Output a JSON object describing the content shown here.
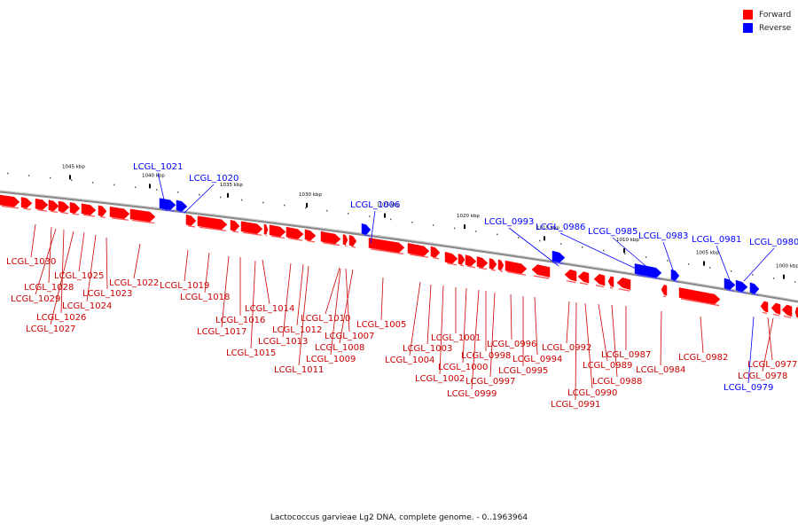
{
  "legend": {
    "items": [
      {
        "label": "Forward",
        "color": "#ff0000"
      },
      {
        "label": "Reverse",
        "color": "#0000ff"
      }
    ]
  },
  "caption": "Lactococcus garvieae Lg2 DNA, complete genome. - 0..1963964",
  "ruler_labels": [
    "1045 kbp",
    "1040 kbp",
    "1035 kbp",
    "1030 kbp",
    "1025 kbp",
    "1020 kbp",
    "1015 kbp",
    "1010 kbp",
    "1005 kbp",
    "1000 kbp"
  ],
  "genes_top": [
    {
      "label": "LCGL_1021",
      "strand": "reverse"
    },
    {
      "label": "LCGL_1020",
      "strand": "reverse"
    },
    {
      "label": "LCGL_1006",
      "strand": "reverse"
    },
    {
      "label": "LCGL_0993",
      "strand": "reverse"
    },
    {
      "label": "LCGL_0986",
      "strand": "reverse"
    },
    {
      "label": "LCGL_0985",
      "strand": "reverse"
    },
    {
      "label": "LCGL_0983",
      "strand": "reverse"
    },
    {
      "label": "LCGL_0981",
      "strand": "reverse"
    },
    {
      "label": "LCGL_0980",
      "strand": "reverse"
    }
  ],
  "genes_bottom": [
    {
      "label": "LCGL_1030",
      "strand": "forward"
    },
    {
      "label": "LCGL_1028",
      "strand": "forward"
    },
    {
      "label": "LCGL_1029",
      "strand": "forward"
    },
    {
      "label": "LCGL_1025",
      "strand": "forward"
    },
    {
      "label": "LCGL_1024",
      "strand": "forward"
    },
    {
      "label": "LCGL_1026",
      "strand": "forward"
    },
    {
      "label": "LCGL_1027",
      "strand": "forward"
    },
    {
      "label": "LCGL_1023",
      "strand": "forward"
    },
    {
      "label": "LCGL_1022",
      "strand": "forward"
    },
    {
      "label": "LCGL_1019",
      "strand": "forward"
    },
    {
      "label": "LCGL_1018",
      "strand": "forward"
    },
    {
      "label": "LCGL_1014",
      "strand": "forward"
    },
    {
      "label": "LCGL_1016",
      "strand": "forward"
    },
    {
      "label": "LCGL_1017",
      "strand": "forward"
    },
    {
      "label": "LCGL_1012",
      "strand": "forward"
    },
    {
      "label": "LCGL_1013",
      "strand": "forward"
    },
    {
      "label": "LCGL_1015",
      "strand": "forward"
    },
    {
      "label": "LCGL_1010",
      "strand": "forward"
    },
    {
      "label": "LCGL_1007",
      "strand": "forward"
    },
    {
      "label": "LCGL_1008",
      "strand": "forward"
    },
    {
      "label": "LCGL_1009",
      "strand": "forward"
    },
    {
      "label": "LCGL_1011",
      "strand": "forward"
    },
    {
      "label": "LCGL_1005",
      "strand": "forward"
    },
    {
      "label": "LCGL_1001",
      "strand": "forward"
    },
    {
      "label": "LCGL_1003",
      "strand": "forward"
    },
    {
      "label": "LCGL_1004",
      "strand": "forward"
    },
    {
      "label": "LCGL_0998",
      "strand": "forward"
    },
    {
      "label": "LCGL_1000",
      "strand": "forward"
    },
    {
      "label": "LCGL_1002",
      "strand": "forward"
    },
    {
      "label": "LCGL_0997",
      "strand": "forward"
    },
    {
      "label": "LCGL_0999",
      "strand": "forward"
    },
    {
      "label": "LCGL_0996",
      "strand": "forward"
    },
    {
      "label": "LCGL_0994",
      "strand": "forward"
    },
    {
      "label": "LCGL_0995",
      "strand": "forward"
    },
    {
      "label": "LCGL_0992",
      "strand": "forward"
    },
    {
      "label": "LCGL_0989",
      "strand": "forward"
    },
    {
      "label": "LCGL_0987",
      "strand": "forward"
    },
    {
      "label": "LCGL_0988",
      "strand": "forward"
    },
    {
      "label": "LCGL_0990",
      "strand": "forward"
    },
    {
      "label": "LCGL_0991",
      "strand": "forward"
    },
    {
      "label": "LCGL_0984",
      "strand": "forward"
    },
    {
      "label": "LCGL_0982",
      "strand": "forward"
    },
    {
      "label": "LCGL_0977",
      "strand": "forward"
    },
    {
      "label": "LCGL_0978",
      "strand": "forward"
    },
    {
      "label": "LCGL_0979",
      "strand": "reverse"
    }
  ]
}
